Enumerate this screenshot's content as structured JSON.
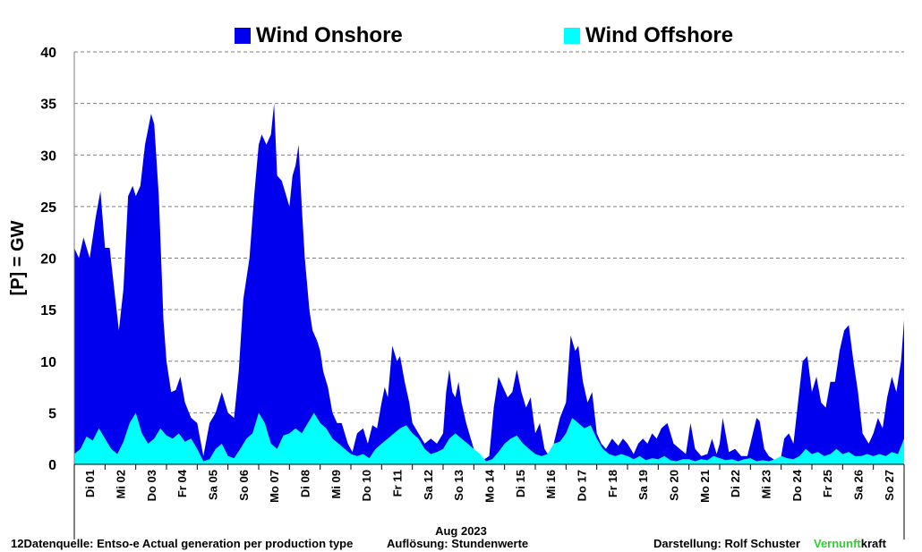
{
  "legend": {
    "onshore": "Wind Onshore",
    "offshore": "Wind Offshore"
  },
  "footer": {
    "source": "12Datenquelle: Entso-e  Actual generation per production type",
    "resolution": "Auflösung: Stundenwerte",
    "author": "Darstellung:  Rolf Schuster",
    "brand_green": "Vernunft",
    "brand_black": "kraft"
  },
  "chart_data": {
    "type": "area",
    "ylabel": "[P]  = GW",
    "xlabel": "Aug 2023",
    "ylim": [
      0,
      40
    ],
    "yticks": [
      0,
      5,
      10,
      15,
      20,
      25,
      30,
      35,
      40
    ],
    "grid": true,
    "legend_position": "top",
    "x_day_start": 1,
    "x_day_end": 28,
    "days": [
      "Di 01",
      "Mi 02",
      "Do 03",
      "Fr 04",
      "Sa 05",
      "So 06",
      "Mo 07",
      "Di 08",
      "Mi 09",
      "Do 10",
      "Fr 11",
      "Sa 12",
      "So 13",
      "Mo 14",
      "Di 15",
      "Mi 16",
      "Do 17",
      "Fr 18",
      "Sa 19",
      "So 20",
      "Mo 21",
      "Di 22",
      "Mi 23",
      "Do 24",
      "Fr 25",
      "Sa 26",
      "So 27"
    ],
    "series": [
      {
        "name": "Wind Onshore",
        "color": "#0000ee",
        "points": [
          [
            1.0,
            21
          ],
          [
            1.15,
            20
          ],
          [
            1.3,
            22
          ],
          [
            1.5,
            20
          ],
          [
            1.7,
            24
          ],
          [
            1.85,
            26.5
          ],
          [
            2.0,
            21
          ],
          [
            2.15,
            21
          ],
          [
            2.3,
            17
          ],
          [
            2.45,
            13
          ],
          [
            2.6,
            17
          ],
          [
            2.75,
            26
          ],
          [
            2.9,
            27
          ],
          [
            3.0,
            26
          ],
          [
            3.15,
            27
          ],
          [
            3.3,
            31
          ],
          [
            3.5,
            34
          ],
          [
            3.6,
            33
          ],
          [
            3.75,
            26
          ],
          [
            3.9,
            14
          ],
          [
            4.0,
            10
          ],
          [
            4.15,
            7
          ],
          [
            4.3,
            7.2
          ],
          [
            4.45,
            8.5
          ],
          [
            4.6,
            6
          ],
          [
            4.8,
            4.5
          ],
          [
            5.0,
            4
          ],
          [
            5.2,
            0.8
          ],
          [
            5.4,
            4
          ],
          [
            5.6,
            5
          ],
          [
            5.8,
            7
          ],
          [
            6.0,
            5
          ],
          [
            6.2,
            4.5
          ],
          [
            6.35,
            9
          ],
          [
            6.5,
            16
          ],
          [
            6.7,
            20
          ],
          [
            6.85,
            26
          ],
          [
            7.0,
            31
          ],
          [
            7.1,
            32
          ],
          [
            7.25,
            31
          ],
          [
            7.4,
            32
          ],
          [
            7.5,
            35
          ],
          [
            7.6,
            28
          ],
          [
            7.75,
            27.5
          ],
          [
            7.9,
            26
          ],
          [
            8.0,
            25
          ],
          [
            8.1,
            28
          ],
          [
            8.2,
            29
          ],
          [
            8.3,
            31
          ],
          [
            8.4,
            25
          ],
          [
            8.5,
            20
          ],
          [
            8.65,
            15
          ],
          [
            8.75,
            13
          ],
          [
            8.9,
            12
          ],
          [
            9.0,
            11
          ],
          [
            9.1,
            9
          ],
          [
            9.25,
            7.5
          ],
          [
            9.4,
            5
          ],
          [
            9.55,
            4
          ],
          [
            9.7,
            4
          ],
          [
            9.9,
            2
          ],
          [
            10.05,
            1.2
          ],
          [
            10.2,
            3
          ],
          [
            10.4,
            3.5
          ],
          [
            10.55,
            2
          ],
          [
            10.7,
            3.8
          ],
          [
            10.85,
            3.5
          ],
          [
            11.0,
            6
          ],
          [
            11.1,
            7.5
          ],
          [
            11.2,
            6.5
          ],
          [
            11.35,
            11.5
          ],
          [
            11.5,
            10
          ],
          [
            11.6,
            10.5
          ],
          [
            11.75,
            8
          ],
          [
            11.9,
            6
          ],
          [
            12.0,
            4
          ],
          [
            12.2,
            3
          ],
          [
            12.4,
            2
          ],
          [
            12.6,
            2.5
          ],
          [
            12.8,
            2
          ],
          [
            13.0,
            3
          ],
          [
            13.1,
            7
          ],
          [
            13.2,
            9.2
          ],
          [
            13.3,
            7
          ],
          [
            13.4,
            6.5
          ],
          [
            13.5,
            8
          ],
          [
            13.6,
            6
          ],
          [
            13.75,
            4
          ],
          [
            13.9,
            2.5
          ],
          [
            14.0,
            1.5
          ],
          [
            14.15,
            1
          ],
          [
            14.25,
            0.5
          ],
          [
            14.35,
            0.5
          ],
          [
            14.5,
            0.8
          ],
          [
            14.65,
            5.5
          ],
          [
            14.8,
            8.5
          ],
          [
            14.95,
            7.5
          ],
          [
            15.1,
            6.5
          ],
          [
            15.25,
            7
          ],
          [
            15.4,
            9.2
          ],
          [
            15.55,
            7
          ],
          [
            15.7,
            5.5
          ],
          [
            15.85,
            6.5
          ],
          [
            16.0,
            3
          ],
          [
            16.15,
            4
          ],
          [
            16.3,
            1.5
          ],
          [
            16.45,
            0.8
          ],
          [
            16.6,
            2
          ],
          [
            16.8,
            4.5
          ],
          [
            17.0,
            6
          ],
          [
            17.15,
            12.5
          ],
          [
            17.3,
            11
          ],
          [
            17.4,
            11.5
          ],
          [
            17.55,
            8
          ],
          [
            17.7,
            6
          ],
          [
            17.85,
            7
          ],
          [
            18.0,
            3
          ],
          [
            18.15,
            2
          ],
          [
            18.3,
            1.5
          ],
          [
            18.5,
            2.5
          ],
          [
            18.7,
            1.8
          ],
          [
            18.85,
            2.5
          ],
          [
            19.0,
            2
          ],
          [
            19.2,
            1
          ],
          [
            19.35,
            2
          ],
          [
            19.5,
            2.5
          ],
          [
            19.65,
            2
          ],
          [
            19.8,
            3
          ],
          [
            19.95,
            2.5
          ],
          [
            20.1,
            3.5
          ],
          [
            20.3,
            4
          ],
          [
            20.5,
            2
          ],
          [
            20.7,
            1.5
          ],
          [
            20.9,
            1
          ],
          [
            21.05,
            4
          ],
          [
            21.2,
            1.5
          ],
          [
            21.4,
            0.8
          ],
          [
            21.6,
            1
          ],
          [
            21.75,
            2.5
          ],
          [
            21.9,
            1
          ],
          [
            22.0,
            2
          ],
          [
            22.1,
            4.5
          ],
          [
            22.3,
            1.2
          ],
          [
            22.5,
            1.5
          ],
          [
            22.7,
            0.8
          ],
          [
            22.9,
            0.8
          ],
          [
            23.0,
            2
          ],
          [
            23.2,
            4.5
          ],
          [
            23.3,
            4.2
          ],
          [
            23.45,
            1.5
          ],
          [
            23.6,
            0.8
          ],
          [
            23.8,
            0.4
          ],
          [
            24.0,
            0.8
          ],
          [
            24.1,
            2.5
          ],
          [
            24.25,
            3
          ],
          [
            24.4,
            2
          ],
          [
            24.55,
            6
          ],
          [
            24.7,
            10
          ],
          [
            24.85,
            10.5
          ],
          [
            25.0,
            7
          ],
          [
            25.15,
            8.5
          ],
          [
            25.3,
            6
          ],
          [
            25.45,
            5.5
          ],
          [
            25.6,
            8
          ],
          [
            25.75,
            8
          ],
          [
            25.9,
            11
          ],
          [
            26.05,
            13
          ],
          [
            26.2,
            13.5
          ],
          [
            26.35,
            10
          ],
          [
            26.5,
            7
          ],
          [
            26.65,
            3
          ],
          [
            26.85,
            2
          ],
          [
            27.0,
            3
          ],
          [
            27.15,
            4.5
          ],
          [
            27.3,
            3.5
          ],
          [
            27.45,
            6.5
          ],
          [
            27.6,
            8.5
          ],
          [
            27.75,
            7
          ],
          [
            27.9,
            10
          ],
          [
            28.0,
            14
          ]
        ]
      },
      {
        "name": "Wind Offshore",
        "color": "#00ffff",
        "points": [
          [
            1.0,
            1
          ],
          [
            1.2,
            1.5
          ],
          [
            1.4,
            2.7
          ],
          [
            1.6,
            2.3
          ],
          [
            1.8,
            3.5
          ],
          [
            2.0,
            2.5
          ],
          [
            2.2,
            1.5
          ],
          [
            2.4,
            1
          ],
          [
            2.6,
            2.2
          ],
          [
            2.8,
            4
          ],
          [
            3.0,
            5
          ],
          [
            3.2,
            3
          ],
          [
            3.4,
            2
          ],
          [
            3.6,
            2.5
          ],
          [
            3.8,
            3.5
          ],
          [
            4.0,
            2.8
          ],
          [
            4.2,
            2.5
          ],
          [
            4.4,
            3
          ],
          [
            4.6,
            2.2
          ],
          [
            4.8,
            2.5
          ],
          [
            5.0,
            1.5
          ],
          [
            5.2,
            0.3
          ],
          [
            5.4,
            0.5
          ],
          [
            5.6,
            1.5
          ],
          [
            5.8,
            2
          ],
          [
            6.0,
            0.8
          ],
          [
            6.2,
            0.6
          ],
          [
            6.4,
            1.5
          ],
          [
            6.6,
            2.5
          ],
          [
            6.8,
            3
          ],
          [
            7.0,
            5
          ],
          [
            7.2,
            4
          ],
          [
            7.4,
            2
          ],
          [
            7.6,
            1.5
          ],
          [
            7.8,
            2.8
          ],
          [
            8.0,
            3
          ],
          [
            8.2,
            3.5
          ],
          [
            8.4,
            3
          ],
          [
            8.6,
            4
          ],
          [
            8.8,
            5
          ],
          [
            9.0,
            4
          ],
          [
            9.2,
            3.5
          ],
          [
            9.4,
            2.5
          ],
          [
            9.6,
            2
          ],
          [
            9.8,
            1.5
          ],
          [
            10.0,
            1
          ],
          [
            10.2,
            0.8
          ],
          [
            10.4,
            1
          ],
          [
            10.6,
            0.6
          ],
          [
            10.8,
            1.5
          ],
          [
            11.0,
            2
          ],
          [
            11.2,
            2.5
          ],
          [
            11.4,
            3
          ],
          [
            11.6,
            3.5
          ],
          [
            11.8,
            3.8
          ],
          [
            12.0,
            3
          ],
          [
            12.2,
            2.5
          ],
          [
            12.4,
            1.5
          ],
          [
            12.6,
            1
          ],
          [
            12.8,
            1.2
          ],
          [
            13.0,
            1.5
          ],
          [
            13.2,
            2.5
          ],
          [
            13.4,
            3
          ],
          [
            13.6,
            2.5
          ],
          [
            13.8,
            2
          ],
          [
            14.0,
            1.5
          ],
          [
            14.2,
            1
          ],
          [
            14.4,
            0.3
          ],
          [
            14.6,
            0.5
          ],
          [
            14.8,
            1.2
          ],
          [
            15.0,
            2
          ],
          [
            15.2,
            2.5
          ],
          [
            15.4,
            2.8
          ],
          [
            15.6,
            2
          ],
          [
            15.8,
            1.5
          ],
          [
            16.0,
            1
          ],
          [
            16.2,
            0.8
          ],
          [
            16.4,
            1
          ],
          [
            16.6,
            2
          ],
          [
            16.8,
            2.2
          ],
          [
            17.0,
            3
          ],
          [
            17.2,
            4.5
          ],
          [
            17.4,
            4
          ],
          [
            17.6,
            3.5
          ],
          [
            17.8,
            3.8
          ],
          [
            18.0,
            2.5
          ],
          [
            18.2,
            1.5
          ],
          [
            18.4,
            1
          ],
          [
            18.6,
            0.8
          ],
          [
            18.8,
            1
          ],
          [
            19.0,
            0.8
          ],
          [
            19.2,
            0.5
          ],
          [
            19.4,
            0.8
          ],
          [
            19.6,
            0.4
          ],
          [
            19.8,
            0.6
          ],
          [
            20.0,
            0.5
          ],
          [
            20.2,
            0.8
          ],
          [
            20.4,
            0.4
          ],
          [
            20.6,
            0.3
          ],
          [
            20.8,
            0.5
          ],
          [
            21.0,
            0.5
          ],
          [
            21.2,
            0.3
          ],
          [
            21.4,
            0.5
          ],
          [
            21.6,
            0.4
          ],
          [
            21.8,
            0.8
          ],
          [
            22.0,
            0.6
          ],
          [
            22.2,
            0.4
          ],
          [
            22.4,
            0.5
          ],
          [
            22.6,
            0.3
          ],
          [
            22.8,
            0.5
          ],
          [
            23.0,
            0.6
          ],
          [
            23.2,
            0.3
          ],
          [
            23.4,
            0.4
          ],
          [
            23.6,
            0.3
          ],
          [
            23.8,
            0.5
          ],
          [
            24.0,
            0.8
          ],
          [
            24.2,
            0.6
          ],
          [
            24.4,
            0.5
          ],
          [
            24.6,
            0.8
          ],
          [
            24.8,
            1.5
          ],
          [
            25.0,
            1
          ],
          [
            25.2,
            1.2
          ],
          [
            25.4,
            0.8
          ],
          [
            25.6,
            1
          ],
          [
            25.8,
            1.5
          ],
          [
            26.0,
            1
          ],
          [
            26.2,
            1.2
          ],
          [
            26.4,
            0.8
          ],
          [
            26.6,
            0.8
          ],
          [
            26.8,
            1
          ],
          [
            27.0,
            0.8
          ],
          [
            27.2,
            1
          ],
          [
            27.4,
            0.8
          ],
          [
            27.6,
            1.2
          ],
          [
            27.8,
            1
          ],
          [
            28.0,
            2.5
          ]
        ]
      }
    ]
  }
}
